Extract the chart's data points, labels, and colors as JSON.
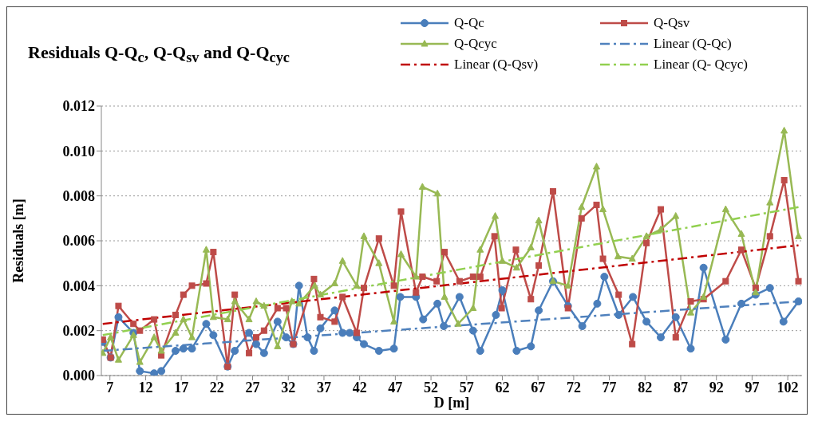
{
  "chart_data": {
    "type": "line",
    "title": "Residuals Q-Q$_{c}$, Q-Q$_{sv}$ and Q-Q$_{cyc}$",
    "xlabel": "D [m]",
    "ylabel": "Residuals [m]",
    "xlim": [
      5.8,
      104
    ],
    "xticks": [
      7,
      12,
      17,
      22,
      27,
      32,
      37,
      42,
      47,
      52,
      57,
      62,
      67,
      72,
      77,
      82,
      87,
      92,
      97,
      102
    ],
    "ylim": [
      0,
      0.012
    ],
    "yticks": [
      {
        "value": 0,
        "label": "0.000"
      },
      {
        "value": 0.002,
        "label": "0.002"
      },
      {
        "value": 0.004,
        "label": "0.004"
      },
      {
        "value": 0.006,
        "label": "0.006"
      },
      {
        "value": 0.008,
        "label": "0.008"
      },
      {
        "value": 0.01,
        "label": "0.010"
      },
      {
        "value": 0.012,
        "label": "0.012"
      }
    ],
    "grid": "y",
    "legend": "top right",
    "series": [
      {
        "name": "Q-Qc",
        "color": "#4a7ebb",
        "marker": "circle",
        "line_style": "solid",
        "x": [
          6.0,
          7.1,
          8.2,
          10.3,
          11.2,
          13.2,
          14.2,
          16.2,
          17.3,
          18.5,
          20.5,
          21.5,
          23.5,
          24.5,
          26.5,
          27.5,
          28.6,
          30.5,
          31.7,
          32.7,
          33.5,
          34.7,
          35.6,
          36.5,
          38.5,
          39.6,
          40.6,
          41.6,
          42.6,
          44.7,
          46.8,
          47.7,
          49.9,
          50.9,
          52.9,
          53.8,
          56,
          57.9,
          58.9,
          61.1,
          62,
          64,
          66,
          67.1,
          69.1,
          71.2,
          73.2,
          75.3,
          76.3,
          78.3,
          80.3,
          82.2,
          84.2,
          86.3,
          88.4,
          90.2,
          93.3,
          95.5,
          97.5,
          99.5,
          101.4,
          103.5
        ],
        "values": [
          0.0015,
          0.0008,
          0.0026,
          0.0019,
          0.0002,
          0.0001,
          0.0002,
          0.0011,
          0.0012,
          0.0012,
          0.0023,
          0.0018,
          0.0004,
          0.0011,
          0.0019,
          0.0014,
          0.001,
          0.0024,
          0.0017,
          0.0014,
          0.004,
          0.0017,
          0.0011,
          0.0021,
          0.0029,
          0.0019,
          0.0019,
          0.0017,
          0.0014,
          0.0011,
          0.0012,
          0.0035,
          0.0035,
          0.0025,
          0.0032,
          0.0022,
          0.0035,
          0.002,
          0.0011,
          0.0027,
          0.0038,
          0.0011,
          0.0013,
          0.0029,
          0.0042,
          0.0031,
          0.0022,
          0.0032,
          0.0044,
          0.0027,
          0.0035,
          0.0024,
          0.0017,
          0.0026,
          0.0012,
          0.0048,
          0.0016,
          0.0032,
          0.0036,
          0.0039,
          0.0024,
          0.0033
        ]
      },
      {
        "name": "Q-Qsv",
        "color": "#be4b48",
        "marker": "square",
        "line_style": "solid",
        "x": [
          6.0,
          7.1,
          8.2,
          10.3,
          11.2,
          13.2,
          14.2,
          16.2,
          17.3,
          18.5,
          20.5,
          21.5,
          23.5,
          24.5,
          26.5,
          27.5,
          28.6,
          30.5,
          31.7,
          32.7,
          35.6,
          36.5,
          38.5,
          39.6,
          41.6,
          42.6,
          44.7,
          46.8,
          47.8,
          49.9,
          50.8,
          52.8,
          53.9,
          56,
          57.9,
          58.9,
          60.9,
          61.9,
          63.9,
          66,
          67.1,
          69.1,
          71.2,
          73.1,
          75.2,
          76.1,
          78.3,
          80.2,
          82.2,
          84.2,
          86.3,
          88.4,
          90.2,
          93.3,
          95.5,
          97.5,
          99.5,
          101.5,
          103.5
        ],
        "values": [
          0.0016,
          0.0008,
          0.0031,
          0.0023,
          0.002,
          0.0025,
          0.0009,
          0.0027,
          0.0036,
          0.004,
          0.0041,
          0.0055,
          0.0004,
          0.0036,
          0.001,
          0.0017,
          0.002,
          0.003,
          0.003,
          0.0014,
          0.0043,
          0.0026,
          0.0024,
          0.0035,
          0.0019,
          0.0039,
          0.0061,
          0.004,
          0.0073,
          0.0037,
          0.0044,
          0.0042,
          0.0055,
          0.0042,
          0.0044,
          0.0044,
          0.0062,
          0.003,
          0.0056,
          0.0034,
          0.0049,
          0.0082,
          0.003,
          0.007,
          0.0076,
          0.0052,
          0.0036,
          0.0014,
          0.0059,
          0.0074,
          0.0017,
          0.0033,
          0.0034,
          0.0042,
          0.0056,
          0.0039,
          0.0062,
          0.0087,
          0.0042
        ]
      },
      {
        "name": "Q-Qcyc",
        "color": "#98b954",
        "marker": "triangle",
        "line_style": "solid",
        "x": [
          6.0,
          7.1,
          8.2,
          10.3,
          11.2,
          13.2,
          14.2,
          16.2,
          17.3,
          18.5,
          20.5,
          21.5,
          23.5,
          24.5,
          26.5,
          27.5,
          28.6,
          30.5,
          32.5,
          33.5,
          35.7,
          36.5,
          38.5,
          39.6,
          41.6,
          42.6,
          44.7,
          46.8,
          47.8,
          49.9,
          50.8,
          52.9,
          53.9,
          55.8,
          57.9,
          58.9,
          61,
          62,
          64,
          66,
          67.1,
          69.1,
          71.2,
          73.1,
          75.2,
          76.1,
          78.2,
          80.2,
          82.2,
          84.2,
          86.3,
          88.4,
          90.2,
          93.3,
          95.5,
          97.5,
          99.5,
          101.5,
          103.5
        ],
        "values": [
          0.001,
          0.0017,
          0.0007,
          0.0018,
          0.0006,
          0.0017,
          0.0011,
          0.0019,
          0.0025,
          0.0017,
          0.0056,
          0.0026,
          0.0025,
          0.0033,
          0.0025,
          0.0033,
          0.0031,
          0.0013,
          0.0033,
          0.0032,
          0.004,
          0.0036,
          0.0041,
          0.0051,
          0.004,
          0.0062,
          0.005,
          0.0024,
          0.0054,
          0.0044,
          0.0084,
          0.0081,
          0.0035,
          0.0023,
          0.003,
          0.0056,
          0.0071,
          0.0051,
          0.0048,
          0.0057,
          0.0069,
          0.0042,
          0.004,
          0.0075,
          0.0093,
          0.0074,
          0.0053,
          0.0052,
          0.0062,
          0.0065,
          0.0071,
          0.0028,
          0.0035,
          0.0074,
          0.0063,
          0.0037,
          0.0077,
          0.0109,
          0.0062
        ]
      },
      {
        "name": "Linear (Q-Qc)",
        "color": "#4f81bd",
        "marker": "none",
        "line_style": "dashdot",
        "x": [
          6.0,
          103.5
        ],
        "values": [
          0.0011,
          0.0033
        ]
      },
      {
        "name": "Linear (Q-Qsv)",
        "color": "#c00000",
        "marker": "none",
        "line_style": "dashdot",
        "x": [
          6.0,
          103.5
        ],
        "values": [
          0.0023,
          0.0058
        ]
      },
      {
        "name": "Linear (Q- Qcyc)",
        "color": "#92d050",
        "marker": "none",
        "line_style": "dashdot",
        "x": [
          6.0,
          103.5
        ],
        "values": [
          0.0018,
          0.0075
        ]
      }
    ]
  }
}
